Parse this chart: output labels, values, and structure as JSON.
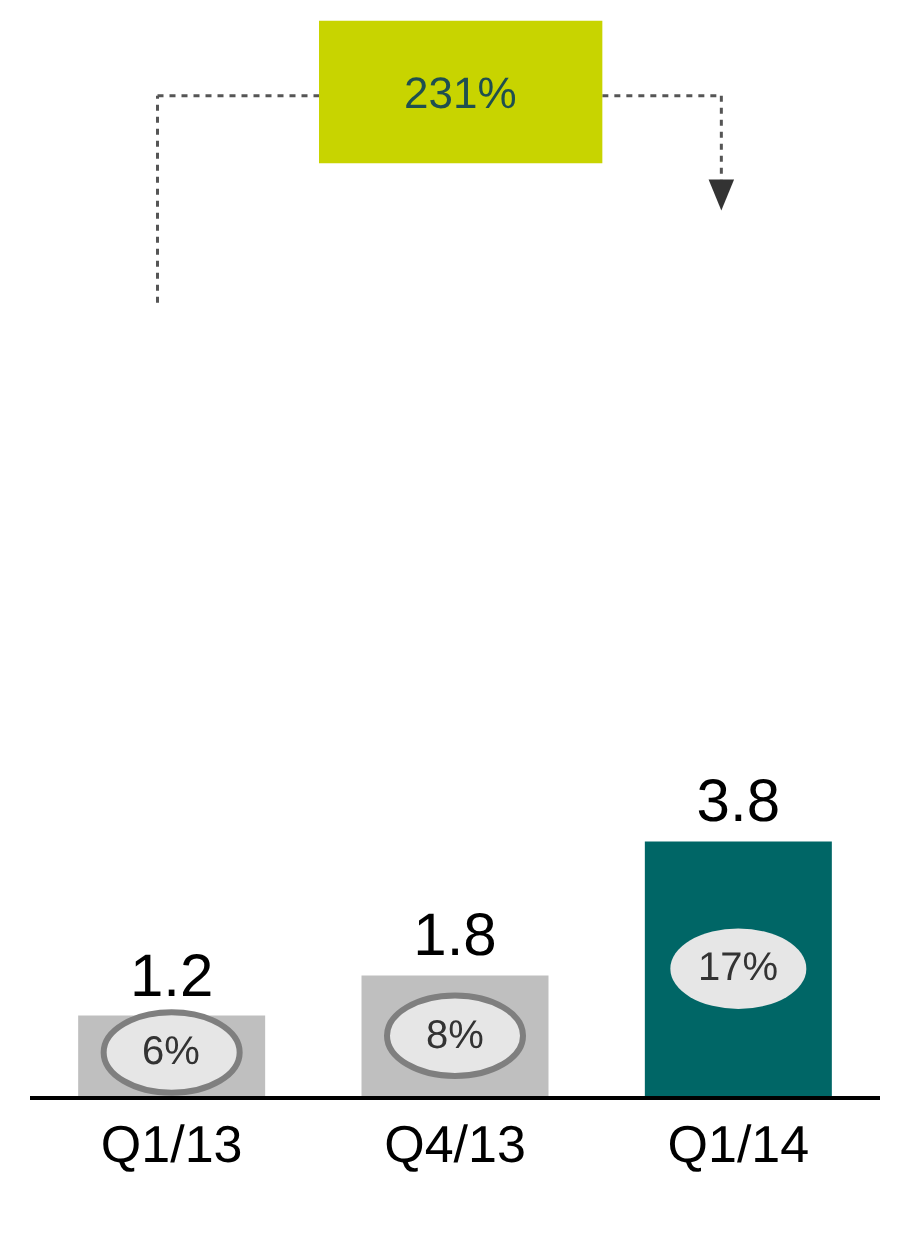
{
  "chart_data": {
    "type": "bar",
    "categories": [
      "Q1/13",
      "Q4/13",
      "Q1/14"
    ],
    "values": [
      1.2,
      1.8,
      3.8
    ],
    "colors": [
      "#bfbfbf",
      "#bfbfbf",
      "#006666"
    ],
    "ylim": [
      0,
      16
    ],
    "data_labels": true,
    "annotations": [
      "6%",
      "8%",
      "17%",
      "231%"
    ]
  }
}
